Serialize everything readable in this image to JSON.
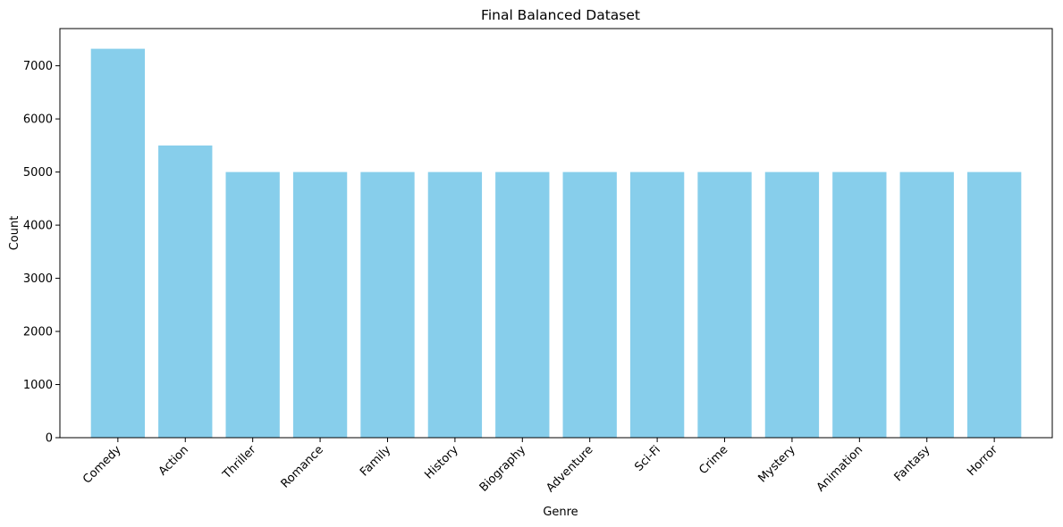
{
  "chart_data": {
    "type": "bar",
    "title": "Final Balanced Dataset",
    "xlabel": "Genre",
    "ylabel": "Count",
    "categories": [
      "Comedy",
      "Action",
      "Thriller",
      "Romance",
      "Family",
      "History",
      "Biography",
      "Adventure",
      "Sci-Fi",
      "Crime",
      "Mystery",
      "Animation",
      "Fantasy",
      "Horror"
    ],
    "values": [
      7320,
      5500,
      5000,
      5000,
      5000,
      5000,
      5000,
      5000,
      5000,
      5000,
      5000,
      5000,
      5000,
      5000
    ],
    "ylim": [
      0,
      7700
    ],
    "yticks": [
      0,
      1000,
      2000,
      3000,
      4000,
      5000,
      6000,
      7000
    ],
    "grid": false,
    "bar_color": "#87CEEB"
  }
}
